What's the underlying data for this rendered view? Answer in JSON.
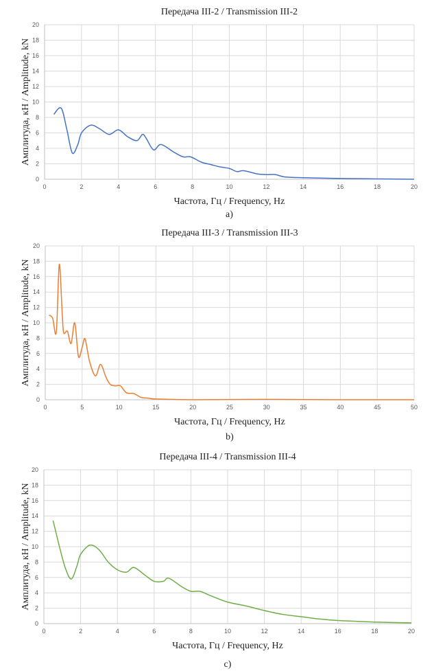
{
  "chart_data": [
    {
      "type": "line",
      "title": "Передача III-2 / Transmission III-2",
      "xlabel": "Частота, Гц / Frequency, Hz",
      "ylabel": "Амплитуда, кН / Amplitude, kN",
      "caption": "a)",
      "xlim": [
        0,
        20
      ],
      "xticks": [
        0,
        2,
        4,
        6,
        8,
        10,
        12,
        14,
        16,
        18,
        20
      ],
      "ylim": [
        0,
        20
      ],
      "yticks": [
        0,
        2,
        4,
        6,
        8,
        10,
        12,
        14,
        16,
        18,
        20
      ],
      "grid": true,
      "color": "#4472c4",
      "x": [
        0.5,
        0.9,
        1.2,
        1.5,
        1.8,
        2.0,
        2.5,
        3.0,
        3.5,
        4.0,
        4.5,
        5.0,
        5.3,
        5.5,
        5.9,
        6.3,
        7.0,
        7.5,
        7.9,
        8.5,
        9.0,
        9.5,
        10.0,
        10.4,
        10.8,
        11.5,
        12.0,
        12.5,
        13.0,
        14.0,
        16.0,
        18.0,
        20.0
      ],
      "y": [
        8.4,
        9.2,
        6.5,
        3.4,
        4.5,
        6.0,
        7.0,
        6.5,
        5.8,
        6.4,
        5.5,
        5.0,
        5.8,
        5.3,
        3.8,
        4.5,
        3.5,
        2.9,
        2.9,
        2.2,
        1.9,
        1.6,
        1.4,
        1.0,
        1.1,
        0.7,
        0.6,
        0.6,
        0.3,
        0.2,
        0.1,
        0.05,
        0.0
      ]
    },
    {
      "type": "line",
      "title": "Передача III-3 / Transmission III-3",
      "xlabel": "Частота, Гц / Frequency, Hz",
      "ylabel": "Амплитуда, кН / Amplitude, kN",
      "caption": "b)",
      "xlim": [
        0,
        50
      ],
      "xticks": [
        0,
        5,
        10,
        15,
        20,
        25,
        30,
        35,
        40,
        45,
        50
      ],
      "ylim": [
        0,
        20
      ],
      "yticks": [
        0,
        2,
        4,
        6,
        8,
        10,
        12,
        14,
        16,
        18,
        20
      ],
      "grid": true,
      "color": "#ed7d31",
      "x": [
        0.5,
        1.0,
        1.5,
        1.9,
        2.3,
        2.5,
        3.0,
        3.5,
        4.0,
        4.5,
        5.0,
        5.4,
        6.0,
        6.8,
        7.5,
        8.2,
        8.8,
        9.5,
        10.2,
        11.0,
        12.0,
        13.0,
        14.0,
        15.0,
        20.0,
        30.0,
        40.0,
        50.0
      ],
      "y": [
        11.0,
        10.6,
        8.8,
        17.6,
        11.2,
        8.7,
        8.9,
        7.3,
        10.0,
        5.6,
        6.8,
        7.9,
        5.0,
        3.1,
        4.6,
        3.0,
        2.0,
        1.8,
        1.8,
        0.9,
        0.8,
        0.3,
        0.2,
        0.1,
        0.0,
        0.05,
        0.0,
        0.0
      ]
    },
    {
      "type": "line",
      "title": "Передача III-4 / Transmission III-4",
      "xlabel": "Частота, Гц / Frequency, Hz",
      "ylabel": "Амплитуда, кН / Amplitude, kN",
      "caption": "c)",
      "xlim": [
        0,
        20
      ],
      "xticks": [
        0,
        2,
        4,
        6,
        8,
        10,
        12,
        14,
        16,
        18,
        20
      ],
      "ylim": [
        0,
        20
      ],
      "yticks": [
        0,
        2,
        4,
        6,
        8,
        10,
        12,
        14,
        16,
        18,
        20
      ],
      "grid": true,
      "color": "#70ad47",
      "x": [
        0.5,
        0.9,
        1.2,
        1.5,
        1.8,
        2.0,
        2.5,
        3.0,
        3.5,
        4.0,
        4.5,
        4.9,
        5.5,
        6.0,
        6.5,
        6.8,
        7.5,
        8.0,
        8.5,
        9.0,
        10.0,
        11.0,
        12.0,
        13.0,
        14.0,
        15.0,
        16.0,
        17.0,
        18.0,
        20.0
      ],
      "y": [
        13.4,
        9.5,
        7.0,
        5.8,
        7.5,
        9.0,
        10.2,
        9.6,
        8.0,
        7.0,
        6.7,
        7.3,
        6.3,
        5.5,
        5.5,
        5.9,
        4.8,
        4.2,
        4.2,
        3.7,
        2.8,
        2.3,
        1.7,
        1.2,
        0.9,
        0.6,
        0.4,
        0.3,
        0.2,
        0.1
      ]
    }
  ]
}
